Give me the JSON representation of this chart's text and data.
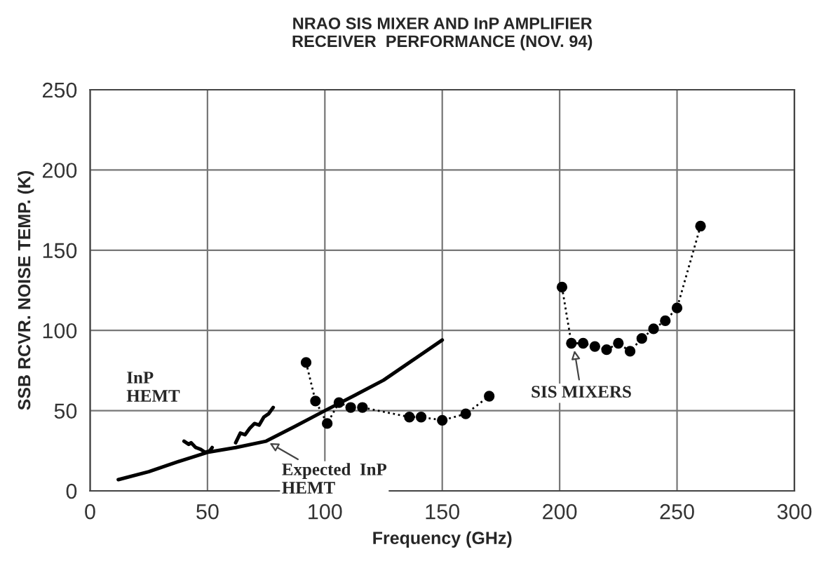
{
  "chart_data": {
    "type": "line",
    "title": "NRAO SIS MIXER AND InP AMPLIFIER\nRECEIVER  PERFORMANCE (NOV. 94)",
    "xlabel": "Frequency (GHz)",
    "ylabel": "SSB RCVR. NOISE TEMP. (K)",
    "xlim": [
      0,
      300
    ],
    "xticks": [
      0,
      50,
      100,
      150,
      200,
      250,
      300
    ],
    "ylim": [
      0,
      250
    ],
    "yticks": [
      0,
      50,
      100,
      150,
      200,
      250
    ],
    "grid": true,
    "series": [
      {
        "color": "#000000",
        "marker": "circle",
        "line_style": "dotted",
        "x": [
          92,
          96,
          101,
          106,
          111,
          116,
          136,
          141,
          150,
          160,
          170,
          185,
          201,
          205,
          210,
          215,
          220,
          225,
          230,
          235,
          240,
          245,
          250,
          260
        ],
        "values": [
          80,
          56,
          42,
          55,
          52,
          52,
          46,
          46,
          44,
          48,
          59,
          null,
          127,
          92,
          92,
          90,
          88,
          92,
          87,
          95,
          101,
          106,
          114,
          165
        ]
      },
      {
        "color": "#000000",
        "marker": "none",
        "line_style": "solid",
        "x": [
          12,
          25,
          37,
          50,
          62,
          75,
          87,
          100,
          112,
          125,
          137,
          150
        ],
        "values": [
          7,
          12,
          18,
          24,
          27,
          31,
          40,
          50,
          59,
          69,
          81,
          94
        ]
      },
      {
        "color": "#000000",
        "marker": "none",
        "line_style": "solid",
        "x": [
          40,
          42,
          43,
          45,
          47,
          49,
          51,
          52
        ],
        "values": [
          31,
          29,
          30,
          27,
          26,
          24,
          25,
          27
        ]
      },
      {
        "color": "#000000",
        "marker": "none",
        "line_style": "solid",
        "x": [
          62,
          64,
          66,
          68,
          70,
          72,
          74,
          76,
          78
        ],
        "values": [
          30,
          36,
          35,
          39,
          42,
          41,
          46,
          48,
          52
        ]
      }
    ],
    "annotations": [
      {
        "text": "InP\nHEMT",
        "x": 47,
        "y": 30
      },
      {
        "text": "Expected  InP\nHEMT",
        "x": 75,
        "y": 31
      },
      {
        "text": "SIS MIXERS",
        "x": 206,
        "y": 90
      }
    ]
  }
}
